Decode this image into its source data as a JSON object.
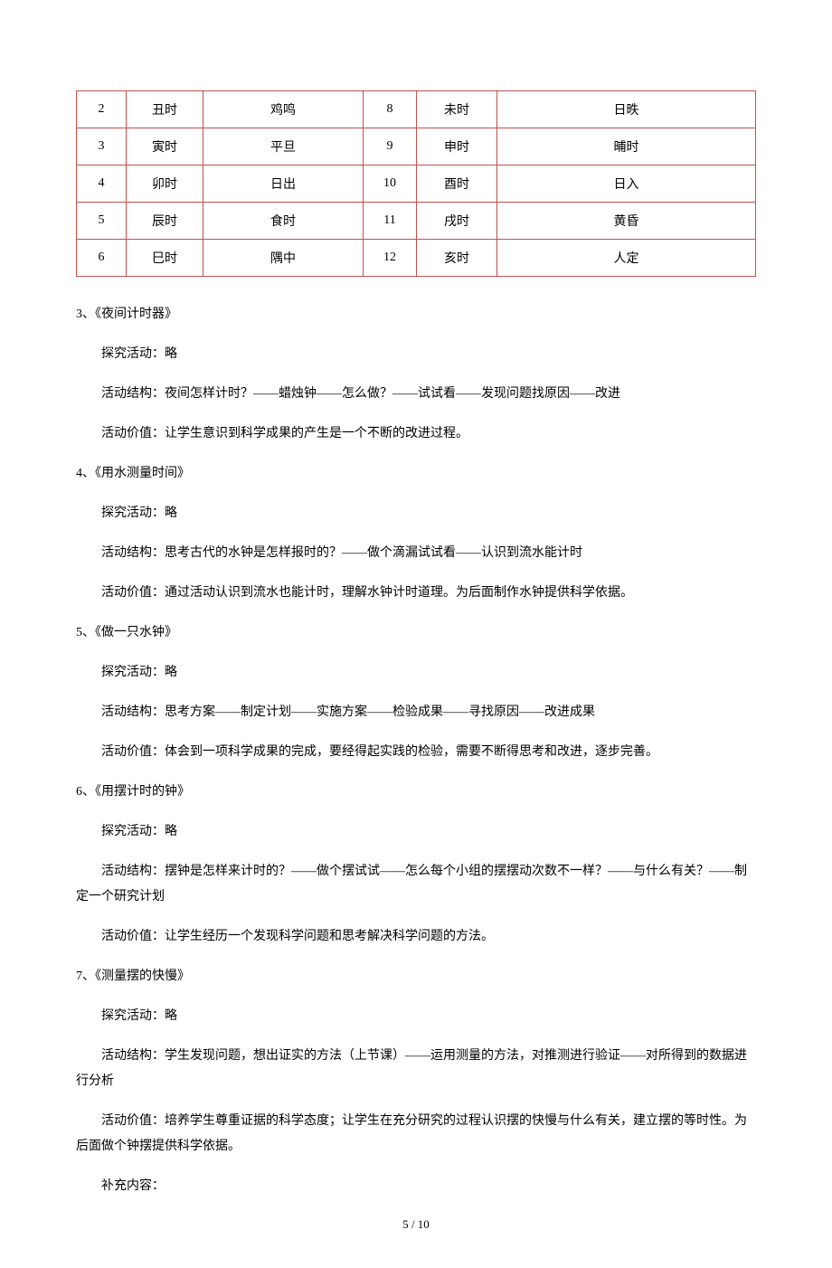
{
  "table": {
    "border_color": "#c0504d",
    "rows": [
      {
        "n1": "2",
        "s1": "丑时",
        "a1": "鸡鸣",
        "n2": "8",
        "s2": "未时",
        "a2": "日昳"
      },
      {
        "n1": "3",
        "s1": "寅时",
        "a1": "平旦",
        "n2": "9",
        "s2": "申时",
        "a2": "晡时"
      },
      {
        "n1": "4",
        "s1": "卯时",
        "a1": "日出",
        "n2": "10",
        "s2": "酉时",
        "a2": "日入"
      },
      {
        "n1": "5",
        "s1": "辰时",
        "a1": "食时",
        "n2": "11",
        "s2": "戌时",
        "a2": "黄昏"
      },
      {
        "n1": "6",
        "s1": "巳时",
        "a1": "隅中",
        "n2": "12",
        "s2": "亥时",
        "a2": "人定"
      }
    ]
  },
  "sections": [
    {
      "title": "3、《夜间计时器》",
      "lines": [
        "探究活动：略",
        "活动结构：夜间怎样计时？——蜡烛钟——怎么做？——试试看——发现问题找原因——改进",
        "活动价值：让学生意识到科学成果的产生是一个不断的改进过程。"
      ]
    },
    {
      "title": "4、《用水测量时间》",
      "lines": [
        "探究活动：略",
        "活动结构：思考古代的水钟是怎样报时的？——做个滴漏试试看——认识到流水能计时",
        "活动价值：通过活动认识到流水也能计时，理解水钟计时道理。为后面制作水钟提供科学依据。"
      ]
    },
    {
      "title": "5、《做一只水钟》",
      "lines": [
        "探究活动：略",
        "活动结构：思考方案——制定计划——实施方案——检验成果——寻找原因——改进成果",
        "活动价值：体会到一项科学成果的完成，要经得起实践的检验，需要不断得思考和改进，逐步完善。"
      ]
    },
    {
      "title": "6、《用摆计时的钟》",
      "lines": [
        "探究活动：略"
      ],
      "wrapped": [
        "活动结构：摆钟是怎样来计时的？——做个摆试试——怎么每个小组的摆摆动次数不一样？——与什么有关？——制定一个研究计划"
      ],
      "lines_after": [
        "活动价值：让学生经历一个发现科学问题和思考解决科学问题的方法。"
      ]
    },
    {
      "title": "7、《测量摆的快慢》",
      "lines": [
        "探究活动：略"
      ],
      "wrapped": [
        "活动结构：学生发现问题，想出证实的方法（上节课）——运用测量的方法，对推测进行验证——对所得到的数据进行分析",
        "活动价值：培养学生尊重证据的科学态度；让学生在充分研究的过程认识摆的快慢与什么有关，建立摆的等时性。为后面做个钟摆提供科学依据。"
      ],
      "lines_after": [
        "补充内容："
      ]
    }
  ],
  "page_num": "5 / 10"
}
